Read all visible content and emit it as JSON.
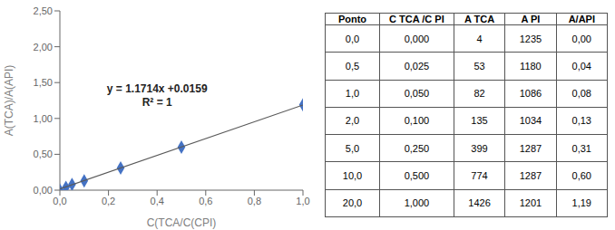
{
  "chart_data": [
    {
      "type": "scatter",
      "xlabel": "C(TCA/C(CPI)",
      "ylabel": "A(TCA)/A(API)",
      "xlim": [
        0,
        1.0
      ],
      "ylim": [
        0,
        2.5
      ],
      "xticks": [
        {
          "value": 0.0,
          "label": "0,0"
        },
        {
          "value": 0.2,
          "label": "0,2"
        },
        {
          "value": 0.4,
          "label": "0,4"
        },
        {
          "value": 0.6,
          "label": "0,6"
        },
        {
          "value": 0.8,
          "label": "0,8"
        },
        {
          "value": 1.0,
          "label": "1,0"
        }
      ],
      "yticks": [
        {
          "value": 0.0,
          "label": "0,00"
        },
        {
          "value": 0.5,
          "label": "0,50"
        },
        {
          "value": 1.0,
          "label": "1,00"
        },
        {
          "value": 1.5,
          "label": "1,50"
        },
        {
          "value": 2.0,
          "label": "2,00"
        },
        {
          "value": 2.5,
          "label": "2,50"
        }
      ],
      "grid": false,
      "series": [
        {
          "type": "scatter",
          "marker": "diamond",
          "color": "#4472C4",
          "x": [
            0.0,
            0.025,
            0.05,
            0.1,
            0.25,
            0.5,
            1.0
          ],
          "values": [
            0.0,
            0.04,
            0.08,
            0.13,
            0.31,
            0.6,
            1.19
          ]
        },
        {
          "type": "line",
          "line_style": "solid",
          "color": "#595959",
          "x": [
            0,
            1.0
          ],
          "values": [
            0.0159,
            1.1873
          ]
        }
      ],
      "annotations": [
        {
          "text": "y = 1.1714x +0.0159",
          "x": 0.4,
          "y": 1.42
        },
        {
          "text": "R² = 1",
          "x": 0.4,
          "y": 1.22
        }
      ]
    },
    {
      "type": "table",
      "columns": [
        "Ponto",
        "C TCA /C PI",
        "A TCA",
        "A PI",
        "A/API"
      ],
      "rows": [
        [
          "0,0",
          "0,000",
          "4",
          "1235",
          "0,00"
        ],
        [
          "0,5",
          "0,025",
          "53",
          "1180",
          "0,04"
        ],
        [
          "1,0",
          "0,050",
          "82",
          "1086",
          "0,08"
        ],
        [
          "2,0",
          "0,100",
          "135",
          "1034",
          "0,13"
        ],
        [
          "5,0",
          "0,250",
          "399",
          "1287",
          "0,31"
        ],
        [
          "10,0",
          "0,500",
          "774",
          "1287",
          "0,60"
        ],
        [
          "20,0",
          "1,000",
          "1426",
          "1201",
          "1,19"
        ]
      ]
    }
  ]
}
